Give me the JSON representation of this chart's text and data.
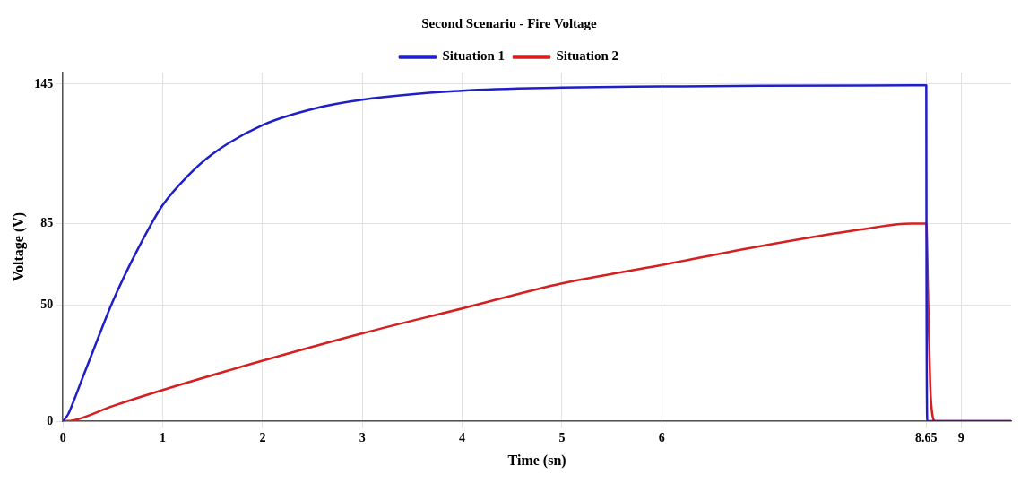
{
  "chart_data": {
    "type": "line",
    "title": "Second Scenario - Fire Voltage",
    "xlabel": "Time (sn)",
    "ylabel": "Voltage (V)",
    "xlim": [
      0,
      9.5
    ],
    "xticks": [
      0,
      1,
      2,
      3,
      4,
      5,
      6,
      8.65,
      9
    ],
    "ylim": [
      0,
      150
    ],
    "yticks": [
      0,
      50,
      85,
      145
    ],
    "grid": true,
    "legend": "top",
    "marker": "none",
    "line_style": "solid",
    "series": [
      {
        "name": "Situation 1",
        "color": "#1f1fc8",
        "x": [
          0,
          0.05,
          0.1,
          0.2,
          0.3,
          0.5,
          0.75,
          1,
          1.25,
          1.5,
          2,
          2.5,
          3,
          4,
          5,
          6,
          7,
          8,
          8.65,
          8.652,
          8.66,
          9,
          9.5
        ],
        "values": [
          0,
          2.8,
          7.8,
          19,
          30,
          51.6,
          74,
          93,
          105.5,
          115,
          127.4,
          134.3,
          138.3,
          142.2,
          143.5,
          144,
          144.3,
          144.4,
          144.5,
          70,
          0,
          0,
          0
        ]
      },
      {
        "name": "Situation 2",
        "color": "#d42020",
        "x": [
          0,
          0.1,
          0.5,
          1,
          2,
          3,
          4,
          5,
          6,
          7,
          8,
          8.5,
          8.65,
          8.67,
          8.69,
          8.71,
          8.74,
          9,
          9.5
        ],
        "values": [
          0,
          0.3,
          6.5,
          13.4,
          26,
          37.8,
          48.5,
          59.3,
          67.2,
          75.4,
          82.5,
          85,
          85,
          50,
          15,
          3,
          0,
          0,
          0
        ]
      }
    ]
  }
}
